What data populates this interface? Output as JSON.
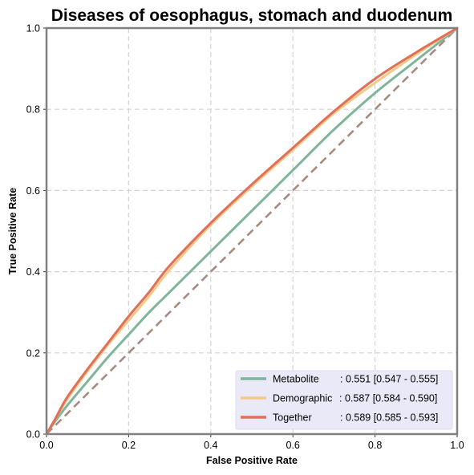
{
  "chart_data": {
    "type": "line",
    "title": "Diseases of oesophagus, stomach and duodenum",
    "xlabel": "False Positive Rate",
    "ylabel": "True Positive Rate",
    "xlim": [
      0,
      1
    ],
    "ylim": [
      0,
      1
    ],
    "xticks": [
      "0.0",
      "0.2",
      "0.4",
      "0.6",
      "0.8",
      "1.0"
    ],
    "yticks": [
      "0.0",
      "0.2",
      "0.4",
      "0.6",
      "0.8",
      "1.0"
    ],
    "grid": true,
    "legend_position": "bottom-right",
    "series": [
      {
        "name": "Metabolite",
        "label": ": 0.551 [0.547 - 0.555]",
        "color": "#7fb59a",
        "x": [
          0,
          0.02,
          0.05,
          0.1,
          0.15,
          0.2,
          0.25,
          0.3,
          0.4,
          0.5,
          0.6,
          0.7,
          0.8,
          0.9,
          1.0
        ],
        "y": [
          0,
          0.03,
          0.07,
          0.13,
          0.19,
          0.245,
          0.3,
          0.35,
          0.45,
          0.55,
          0.65,
          0.75,
          0.84,
          0.92,
          1.0
        ]
      },
      {
        "name": "Demographic",
        "label": ": 0.587 [0.584 - 0.590]",
        "color": "#f5c98a",
        "x": [
          0,
          0.02,
          0.05,
          0.1,
          0.15,
          0.2,
          0.25,
          0.3,
          0.4,
          0.5,
          0.6,
          0.7,
          0.8,
          0.9,
          1.0
        ],
        "y": [
          0,
          0.035,
          0.085,
          0.155,
          0.22,
          0.28,
          0.34,
          0.405,
          0.515,
          0.61,
          0.7,
          0.79,
          0.865,
          0.935,
          1.0
        ]
      },
      {
        "name": "Together",
        "label": ": 0.589 [0.585 - 0.593]",
        "color": "#e07058",
        "x": [
          0,
          0.02,
          0.05,
          0.1,
          0.15,
          0.2,
          0.25,
          0.3,
          0.4,
          0.5,
          0.6,
          0.7,
          0.8,
          0.9,
          1.0
        ],
        "y": [
          0,
          0.035,
          0.09,
          0.16,
          0.225,
          0.29,
          0.35,
          0.415,
          0.52,
          0.615,
          0.705,
          0.795,
          0.875,
          0.94,
          1.0
        ]
      }
    ],
    "reference_line": {
      "x": [
        0,
        1
      ],
      "y": [
        0,
        1
      ],
      "color": "#a88a80",
      "style": "dashed"
    }
  }
}
